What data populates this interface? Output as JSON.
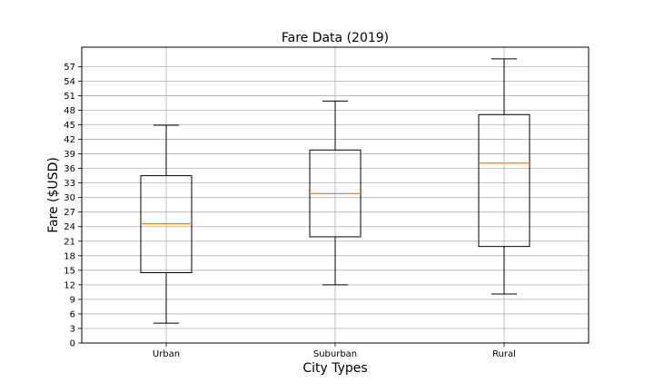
{
  "chart_data": {
    "type": "boxplot",
    "title": "Fare Data (2019)",
    "xlabel": "City Types",
    "ylabel": "Fare ($USD)",
    "categories": [
      "Urban",
      "Suburban",
      "Rural"
    ],
    "boxes": [
      {
        "category": "Urban",
        "whisker_low": 4.1,
        "q1": 14.5,
        "median": 24.6,
        "q3": 34.5,
        "whisker_high": 44.9
      },
      {
        "category": "Suburban",
        "whisker_low": 12.0,
        "q1": 21.9,
        "median": 30.8,
        "q3": 39.8,
        "whisker_high": 49.9
      },
      {
        "category": "Rural",
        "whisker_low": 10.1,
        "q1": 19.9,
        "median": 37.1,
        "q3": 47.1,
        "whisker_high": 58.6
      }
    ],
    "yticks": [
      0,
      3,
      6,
      9,
      12,
      15,
      18,
      21,
      24,
      27,
      30,
      33,
      36,
      39,
      42,
      45,
      48,
      51,
      54,
      57
    ],
    "ylim": [
      0,
      61
    ],
    "grid": true,
    "colors": {
      "box": "#000000",
      "median": "#ff7f0e",
      "grid": "#b0b0b0"
    }
  }
}
